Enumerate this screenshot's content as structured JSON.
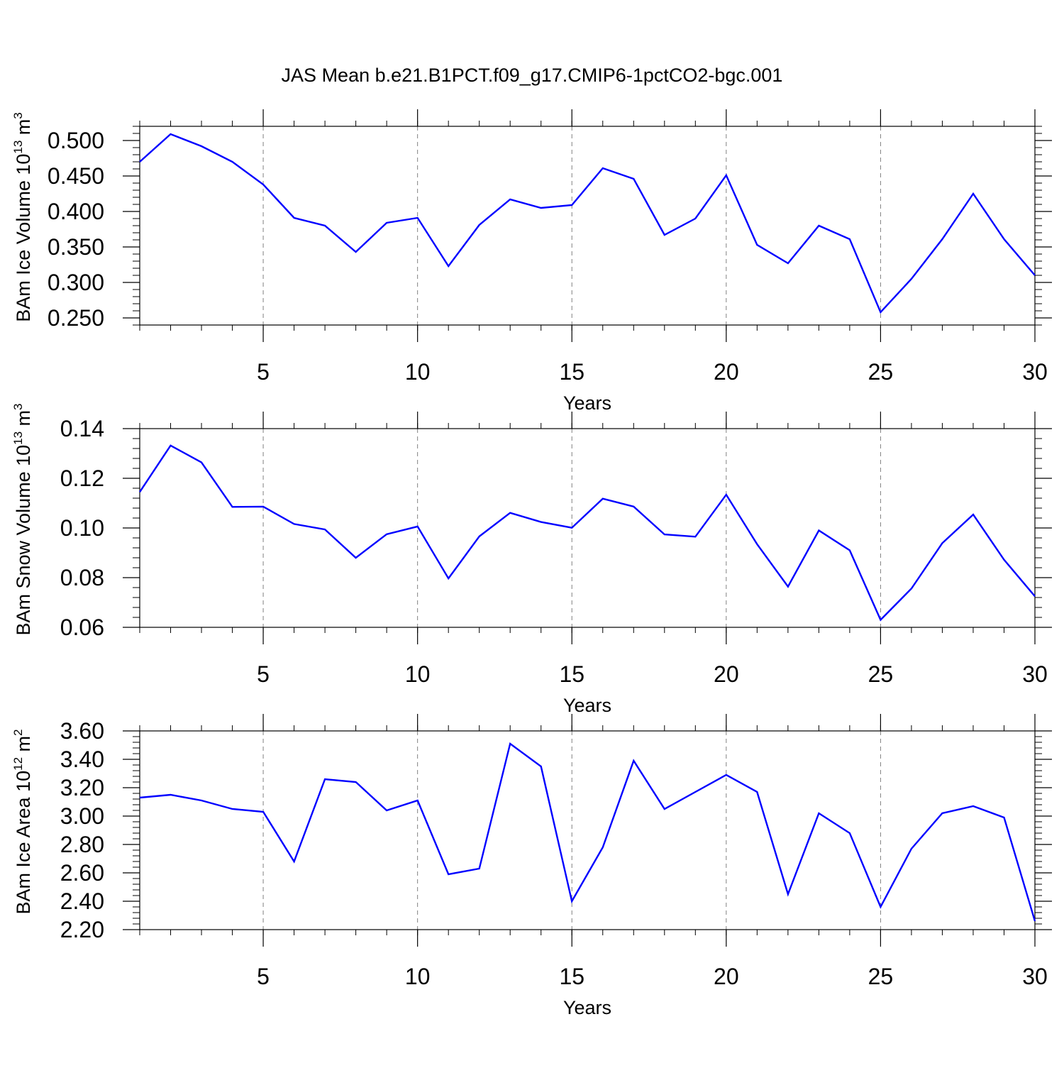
{
  "title": "JAS Mean b.e21.B1PCT.f09_g17.CMIP6-1pctCO2-bgc.001",
  "colors": {
    "series": "#0000ff",
    "axis": "#000000",
    "grid": "#808080",
    "background": "#ffffff"
  },
  "chart_data": [
    {
      "type": "line",
      "ylabel": "BAm Ice Volume",
      "yunit_base": "10",
      "yunit_exp": "13",
      "yunit_suffix": "m",
      "yunit_suffix_exp": "3",
      "xlabel": "Years",
      "xlim": [
        1,
        30
      ],
      "ylim": [
        0.24,
        0.52
      ],
      "xticks": [
        "5",
        "10",
        "15",
        "20",
        "25",
        "30"
      ],
      "yticks": [
        "0.250",
        "0.300",
        "0.350",
        "0.400",
        "0.450",
        "0.500"
      ],
      "grid": "vertical dashed at major x ticks",
      "x": [
        1,
        2,
        3,
        4,
        5,
        6,
        7,
        8,
        9,
        10,
        11,
        12,
        13,
        14,
        15,
        16,
        17,
        18,
        19,
        20,
        21,
        22,
        23,
        24,
        25,
        26,
        27,
        28,
        29,
        30
      ],
      "series": [
        {
          "name": "BAm Ice Volume",
          "values": [
            0.47,
            0.509,
            0.492,
            0.47,
            0.438,
            0.391,
            0.38,
            0.343,
            0.384,
            0.391,
            0.323,
            0.381,
            0.417,
            0.405,
            0.409,
            0.461,
            0.446,
            0.367,
            0.39,
            0.451,
            0.353,
            0.327,
            0.38,
            0.361,
            0.258,
            0.305,
            0.361,
            0.425,
            0.361,
            0.31
          ]
        }
      ]
    },
    {
      "type": "line",
      "ylabel": "BAm Snow Volume",
      "yunit_base": "10",
      "yunit_exp": "13",
      "yunit_suffix": "m",
      "yunit_suffix_exp": "3",
      "xlabel": "Years",
      "xlim": [
        1,
        30
      ],
      "ylim": [
        0.06,
        0.14
      ],
      "xticks": [
        "5",
        "10",
        "15",
        "20",
        "25",
        "30"
      ],
      "yticks": [
        "0.06",
        "0.08",
        "0.10",
        "0.12",
        "0.14"
      ],
      "grid": "vertical dashed at major x ticks",
      "x": [
        1,
        2,
        3,
        4,
        5,
        6,
        7,
        8,
        9,
        10,
        11,
        12,
        13,
        14,
        15,
        16,
        17,
        18,
        19,
        20,
        21,
        22,
        23,
        24,
        25,
        26,
        27,
        28,
        29,
        30
      ],
      "series": [
        {
          "name": "BAm Snow Volume",
          "values": [
            0.1145,
            0.1332,
            0.1264,
            0.1085,
            0.1086,
            0.1016,
            0.0994,
            0.088,
            0.0975,
            0.1006,
            0.0797,
            0.0966,
            0.1061,
            0.1024,
            0.1001,
            0.1118,
            0.1086,
            0.0974,
            0.0965,
            0.1134,
            0.0935,
            0.0764,
            0.099,
            0.091,
            0.063,
            0.0756,
            0.0939,
            0.1054,
            0.0872,
            0.0725
          ]
        }
      ]
    },
    {
      "type": "line",
      "ylabel": "BAm Ice Area",
      "yunit_base": "10",
      "yunit_exp": "12",
      "yunit_suffix": "m",
      "yunit_suffix_exp": "2",
      "xlabel": "Years",
      "xlim": [
        1,
        30
      ],
      "ylim": [
        2.2,
        3.6
      ],
      "xticks": [
        "5",
        "10",
        "15",
        "20",
        "25",
        "30"
      ],
      "yticks": [
        "2.20",
        "2.40",
        "2.60",
        "2.80",
        "3.00",
        "3.20",
        "3.40",
        "3.60"
      ],
      "grid": "vertical dashed at major x ticks",
      "x": [
        1,
        2,
        3,
        4,
        5,
        6,
        7,
        8,
        9,
        10,
        11,
        12,
        13,
        14,
        15,
        16,
        17,
        18,
        19,
        20,
        21,
        22,
        23,
        24,
        25,
        26,
        27,
        28,
        29,
        30
      ],
      "series": [
        {
          "name": "BAm Ice Area",
          "values": [
            3.13,
            3.15,
            3.11,
            3.05,
            3.03,
            2.68,
            3.26,
            3.24,
            3.04,
            3.11,
            2.59,
            2.63,
            3.51,
            3.35,
            2.4,
            2.78,
            3.39,
            3.05,
            3.17,
            3.29,
            3.17,
            2.45,
            3.02,
            2.88,
            2.36,
            2.77,
            3.02,
            3.07,
            2.99,
            2.26
          ]
        }
      ]
    }
  ]
}
